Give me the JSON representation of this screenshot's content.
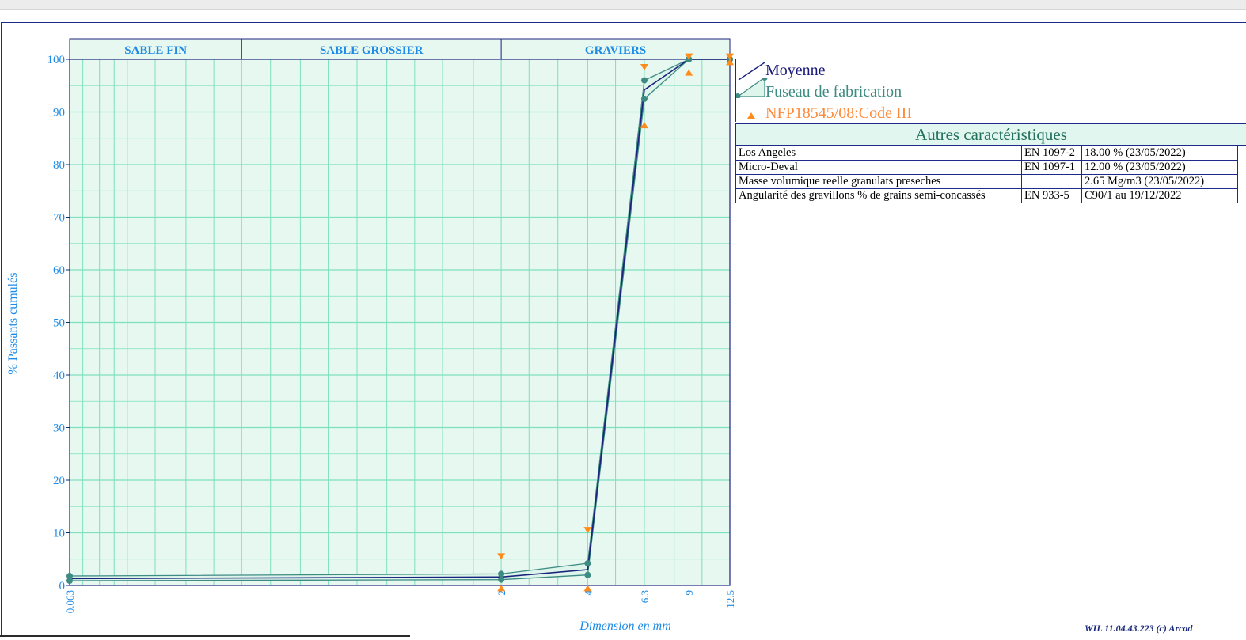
{
  "chart_data": {
    "type": "line",
    "ylabel": "% Passants cumulés",
    "xlabel": "Dimension en mm",
    "x_scale": "log",
    "xlim": [
      0.063,
      12.5
    ],
    "ylim": [
      0,
      100
    ],
    "y_ticks": [
      "0",
      "10",
      "20",
      "30",
      "40",
      "50",
      "60",
      "70",
      "80",
      "90",
      "100"
    ],
    "x_ticks": [
      "0.063",
      "2",
      "4",
      "6.3",
      "9",
      "12.5"
    ],
    "x_tick_values": [
      0.063,
      2,
      4,
      6.3,
      9,
      12.5
    ],
    "zones": [
      {
        "label": "SABLE FIN",
        "from": 0.063,
        "to": 0.25
      },
      {
        "label": "SABLE GROSSIER",
        "from": 0.25,
        "to": 2
      },
      {
        "label": "GRAVIERS",
        "from": 2,
        "to": 12.5
      }
    ],
    "series": [
      {
        "name": "Moyenne",
        "x": [
          0.063,
          2,
          4,
          6.3,
          9,
          12.5
        ],
        "values": [
          1.3,
          1.6,
          3.0,
          94.2,
          100,
          100
        ]
      },
      {
        "name": "Fuseau de fabrication",
        "x": [
          0.063,
          2,
          4,
          6.3,
          9,
          12.5
        ],
        "upper": [
          1.8,
          2.2,
          4.2,
          96.0,
          100,
          100
        ],
        "lower": [
          0.9,
          1.1,
          2.0,
          92.5,
          100,
          100
        ]
      },
      {
        "name": "NFP18545/08:Code III",
        "x": [
          0.063,
          2,
          4,
          6.3,
          9,
          12.5
        ],
        "upper": [
          null,
          5.5,
          10.5,
          98.5,
          100.5,
          100.5
        ],
        "lower": [
          null,
          -0.5,
          -0.5,
          87.5,
          97.5,
          99.5
        ]
      }
    ],
    "colors": {
      "mean": "#1a237e",
      "fuseau": "#3d8b82",
      "fuseau_fill": "#ddf5ea",
      "norm": "#ff8c1a",
      "grid": "#7ee0bd",
      "axis": "#1e8be6",
      "plot_bg": "#e6f8f0"
    }
  },
  "legend": {
    "items": [
      {
        "label": "Moyenne"
      },
      {
        "label": "Fuseau de fabrication"
      },
      {
        "label": "NFP18545/08:Code III"
      }
    ]
  },
  "autres": {
    "title": "Autres caractéristiques",
    "rows": [
      {
        "name": "Los Angeles",
        "norm": "EN 1097-2",
        "value": "18.00 % (23/05/2022)"
      },
      {
        "name": "Micro-Deval",
        "norm": "EN 1097-1",
        "value": "12.00 % (23/05/2022)"
      },
      {
        "name": "Masse volumique reelle granulats preseches",
        "norm": "",
        "value": "2.65 Mg/m3 (23/05/2022)"
      },
      {
        "name": "Angularité des gravillons % de grains semi-concassés",
        "norm": "EN 933-5",
        "value": "C90/1 au 19/12/2022"
      }
    ]
  },
  "footer": {
    "text": "WIL 11.04.43.223 (c) Arcad"
  }
}
